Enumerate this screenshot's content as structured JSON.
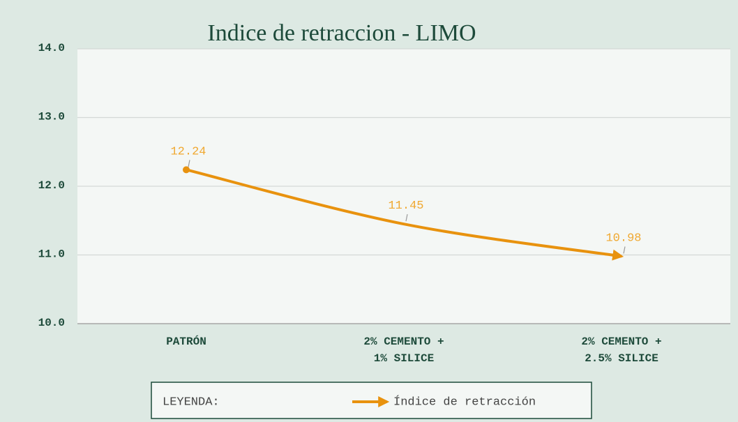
{
  "chart_data": {
    "type": "line",
    "title": "Indice de retraccion - LIMO",
    "categories": [
      "PATRÓN",
      "2% CEMENTO +\n1% SILICE",
      "2% CEMENTO +\n2.5% SILICE"
    ],
    "series": [
      {
        "name": "Índice de retracción",
        "color": "#e8920e",
        "values": [
          12.24,
          11.45,
          10.98
        ]
      }
    ],
    "ylim": [
      10,
      14
    ],
    "yticks": [
      {
        "value": 10,
        "label": "10.0"
      },
      {
        "value": 11,
        "label": "11.0"
      },
      {
        "value": 12,
        "label": "12.0"
      },
      {
        "value": 13,
        "label": "13.0"
      },
      {
        "value": 14,
        "label": "14.0"
      }
    ],
    "grid": true,
    "legend_title": "LEYENDA:"
  }
}
